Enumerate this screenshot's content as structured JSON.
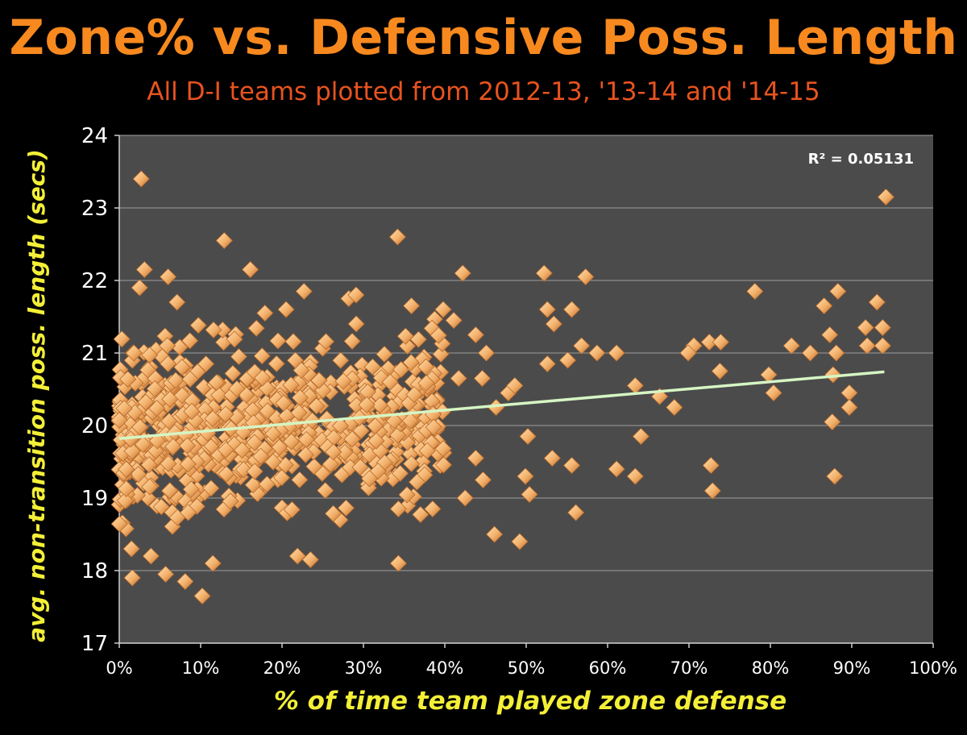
{
  "colors": {
    "background": "#000000",
    "plot_background": "#4b4b4b",
    "title": "#f7891f",
    "subtitle": "#e8531f",
    "axis_label": "#f3ef37",
    "tick_label": "#ffffff",
    "gridline": "#8c8c8c",
    "point": "#f2b06a",
    "point_dark": "#b9692a",
    "trendline": "#d6f5c4"
  },
  "chart_data": {
    "type": "scatter",
    "title": "Zone% vs. Defensive Poss. Length",
    "subtitle": "All D-I teams plotted from 2012-13, '13-14 and '14-15",
    "xlabel": "% of time team played zone defense",
    "ylabel": "avg. non-transition poss. length (secs)",
    "xlim": [
      0,
      100
    ],
    "ylim": [
      17,
      24
    ],
    "x_ticks": [
      0,
      10,
      20,
      30,
      40,
      50,
      60,
      70,
      80,
      90,
      100
    ],
    "x_tick_labels": [
      "0%",
      "10%",
      "20%",
      "30%",
      "40%",
      "50%",
      "60%",
      "70%",
      "80%",
      "90%",
      "100%"
    ],
    "y_ticks": [
      17,
      18,
      19,
      20,
      21,
      22,
      23,
      24
    ],
    "y_tick_labels": [
      "17",
      "18",
      "19",
      "20",
      "21",
      "22",
      "23",
      "24"
    ],
    "grid": "horizontal",
    "r_squared_label": "R² = 0.05131",
    "trendline": {
      "x": [
        0,
        94
      ],
      "y": [
        19.82,
        20.74
      ]
    },
    "cluster_note": "dense cloud of roughly 700 additional teams between 0% and 40% zone, 18.4-21.2 secs (generated procedurally around the trendline)",
    "points": [
      [
        2.7,
        23.4
      ],
      [
        12.9,
        22.55
      ],
      [
        34.2,
        22.6
      ],
      [
        94.2,
        23.15
      ],
      [
        3.1,
        22.15
      ],
      [
        6.0,
        22.05
      ],
      [
        16.1,
        22.15
      ],
      [
        42.2,
        22.1
      ],
      [
        52.2,
        22.1
      ],
      [
        57.3,
        22.05
      ],
      [
        2.5,
        21.9
      ],
      [
        22.7,
        21.85
      ],
      [
        78.1,
        21.85
      ],
      [
        88.3,
        21.85
      ],
      [
        93.1,
        21.7
      ],
      [
        7.1,
        21.7
      ],
      [
        17.9,
        21.55
      ],
      [
        20.5,
        21.6
      ],
      [
        28.2,
        21.75
      ],
      [
        29.1,
        21.8
      ],
      [
        35.9,
        21.65
      ],
      [
        39.8,
        21.6
      ],
      [
        41.1,
        21.45
      ],
      [
        52.6,
        21.6
      ],
      [
        55.6,
        21.6
      ],
      [
        53.4,
        21.4
      ],
      [
        86.6,
        21.65
      ],
      [
        93.8,
        21.35
      ],
      [
        91.7,
        21.35
      ],
      [
        45.1,
        21.0
      ],
      [
        43.8,
        21.25
      ],
      [
        56.8,
        21.1
      ],
      [
        58.7,
        21.0
      ],
      [
        61.1,
        21.0
      ],
      [
        70.6,
        21.1
      ],
      [
        72.5,
        21.15
      ],
      [
        73.9,
        21.15
      ],
      [
        69.9,
        21.0
      ],
      [
        82.6,
        21.1
      ],
      [
        84.9,
        21.0
      ],
      [
        87.3,
        21.25
      ],
      [
        88.1,
        21.0
      ],
      [
        91.9,
        21.1
      ],
      [
        93.8,
        21.1
      ],
      [
        52.6,
        20.85
      ],
      [
        55.1,
        20.9
      ],
      [
        63.4,
        20.55
      ],
      [
        66.4,
        20.4
      ],
      [
        68.2,
        20.25
      ],
      [
        73.8,
        20.75
      ],
      [
        79.8,
        20.7
      ],
      [
        80.4,
        20.45
      ],
      [
        87.7,
        20.7
      ],
      [
        89.7,
        20.45
      ],
      [
        89.7,
        20.25
      ],
      [
        87.6,
        20.05
      ],
      [
        64.1,
        19.85
      ],
      [
        50.2,
        19.85
      ],
      [
        53.2,
        19.55
      ],
      [
        55.6,
        19.45
      ],
      [
        61.1,
        19.4
      ],
      [
        63.4,
        19.3
      ],
      [
        72.7,
        19.45
      ],
      [
        72.9,
        19.1
      ],
      [
        87.9,
        19.3
      ],
      [
        49.9,
        19.3
      ],
      [
        50.4,
        19.05
      ],
      [
        56.1,
        18.8
      ],
      [
        46.1,
        18.5
      ],
      [
        49.2,
        18.4
      ],
      [
        42.5,
        19.0
      ],
      [
        38.5,
        18.85
      ],
      [
        34.3,
        18.85
      ],
      [
        34.3,
        18.1
      ],
      [
        1.5,
        18.3
      ],
      [
        3.9,
        18.2
      ],
      [
        1.6,
        17.9
      ],
      [
        5.7,
        17.95
      ],
      [
        8.1,
        17.85
      ],
      [
        10.2,
        17.65
      ],
      [
        11.5,
        18.1
      ],
      [
        21.9,
        18.2
      ],
      [
        23.5,
        18.15
      ],
      [
        46.3,
        20.25
      ],
      [
        47.8,
        20.45
      ],
      [
        48.6,
        20.55
      ],
      [
        44.6,
        20.65
      ],
      [
        41.7,
        20.65
      ],
      [
        43.8,
        19.55
      ],
      [
        44.7,
        19.25
      ]
    ]
  }
}
